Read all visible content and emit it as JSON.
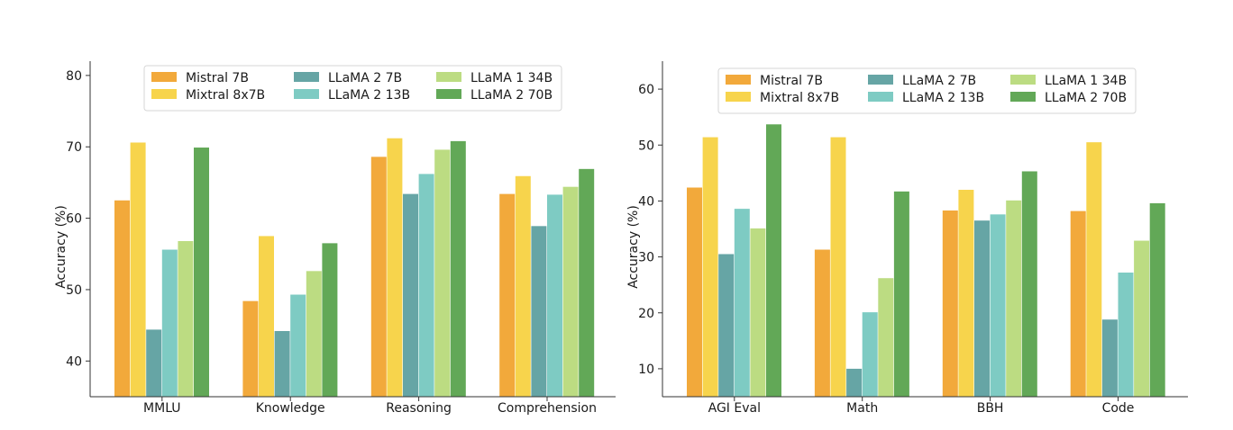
{
  "series_names": [
    "Mistral 7B",
    "Mixtral 8x7B",
    "LLaMA 2 7B",
    "LLaMA 2 13B",
    "LLaMA 1 34B",
    "LLaMA 2 70B"
  ],
  "series_colors": [
    "#f2a93b",
    "#f7d44c",
    "#66a5a5",
    "#7ecbc3",
    "#bcdc82",
    "#62a857"
  ],
  "chart_data": [
    {
      "type": "bar",
      "title": "",
      "xlabel": "",
      "ylabel": "Accuracy (%)",
      "ylim": [
        35,
        82
      ],
      "yticks": [
        40,
        50,
        60,
        70,
        80
      ],
      "categories": [
        "MMLU",
        "Knowledge",
        "Reasoning",
        "Comprehension"
      ],
      "legend_position": "top",
      "grid": false,
      "series": [
        {
          "name": "Mistral 7B",
          "values": [
            62.5,
            48.4,
            68.6,
            63.4
          ]
        },
        {
          "name": "Mixtral 8x7B",
          "values": [
            70.6,
            57.5,
            71.2,
            65.9
          ]
        },
        {
          "name": "LLaMA 2 7B",
          "values": [
            44.4,
            44.2,
            63.4,
            58.9
          ]
        },
        {
          "name": "LLaMA 2 13B",
          "values": [
            55.6,
            49.3,
            66.2,
            63.3
          ]
        },
        {
          "name": "LLaMA 1 34B",
          "values": [
            56.8,
            52.6,
            69.6,
            64.4
          ]
        },
        {
          "name": "LLaMA 2 70B",
          "values": [
            69.9,
            56.5,
            70.8,
            66.9
          ]
        }
      ]
    },
    {
      "type": "bar",
      "title": "",
      "xlabel": "",
      "ylabel": "Accuracy (%)",
      "ylim": [
        5,
        65
      ],
      "yticks": [
        10,
        20,
        30,
        40,
        50,
        60
      ],
      "categories": [
        "AGI Eval",
        "Math",
        "BBH",
        "Code"
      ],
      "legend_position": "top",
      "grid": false,
      "series": [
        {
          "name": "Mistral 7B",
          "values": [
            42.4,
            31.3,
            38.3,
            38.2
          ]
        },
        {
          "name": "Mixtral 8x7B",
          "values": [
            51.4,
            51.4,
            42.0,
            50.5
          ]
        },
        {
          "name": "LLaMA 2 7B",
          "values": [
            30.5,
            10.0,
            36.5,
            18.8
          ]
        },
        {
          "name": "LLaMA 2 13B",
          "values": [
            38.6,
            20.1,
            37.6,
            27.2
          ]
        },
        {
          "name": "LLaMA 1 34B",
          "values": [
            35.1,
            26.2,
            40.1,
            32.9
          ]
        },
        {
          "name": "LLaMA 2 70B",
          "values": [
            53.7,
            41.7,
            45.3,
            39.6
          ]
        }
      ]
    }
  ]
}
